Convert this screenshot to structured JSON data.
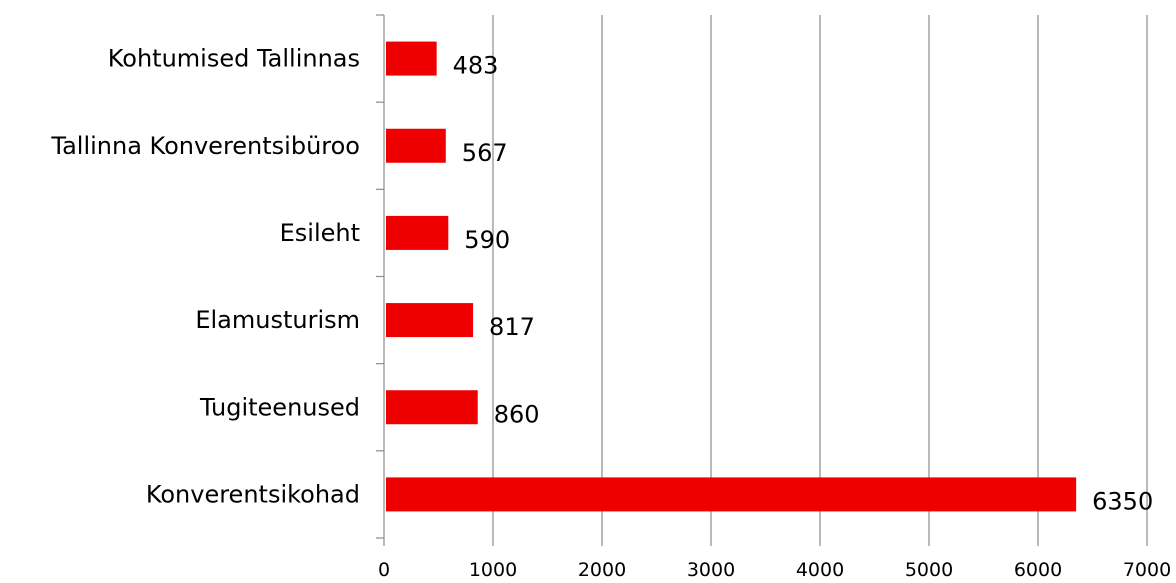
{
  "chart_data": {
    "type": "bar",
    "orientation": "horizontal",
    "title": "",
    "xlabel": "",
    "ylabel": "",
    "categories": [
      "Kohtumised Tallinnas",
      "Tallinna Konverentsibüroo",
      "Esileht",
      "Elamusturism",
      "Tugiteenused",
      "Konverentsikohad"
    ],
    "values": [
      483,
      567,
      590,
      817,
      860,
      6350
    ],
    "xlim": [
      0,
      7000
    ],
    "xticks": [
      "0",
      "1000",
      "2000",
      "3000",
      "4000",
      "5000",
      "6000",
      "7000"
    ],
    "grid": "vertical",
    "legend": "none",
    "bar_color": "#ee0000",
    "grid_color": "#8c8c8c"
  }
}
